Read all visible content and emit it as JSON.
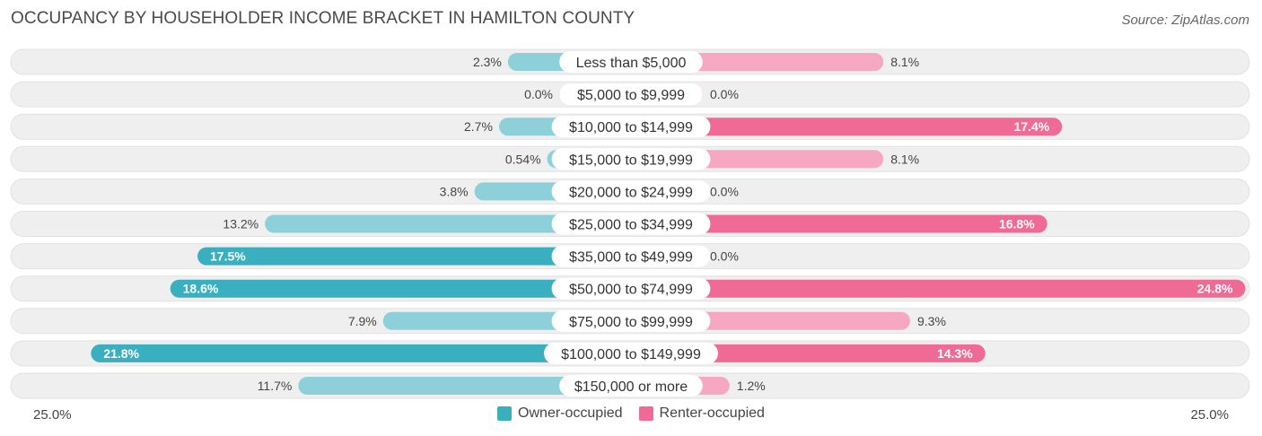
{
  "title": "OCCUPANCY BY HOUSEHOLDER INCOME BRACKET IN HAMILTON COUNTY",
  "source": "Source: ZipAtlas.com",
  "colors": {
    "owner": "#3aafbf",
    "owner_light": "#8dd0da",
    "renter": "#f06a96",
    "renter_light": "#f6a8c2",
    "row_bg": "#efefef"
  },
  "chart_data": {
    "type": "bar",
    "orientation": "horizontal-diverging",
    "categories": [
      "Less than $5,000",
      "$5,000 to $9,999",
      "$10,000 to $14,999",
      "$15,000 to $19,999",
      "$20,000 to $24,999",
      "$25,000 to $34,999",
      "$35,000 to $49,999",
      "$50,000 to $74,999",
      "$75,000 to $99,999",
      "$100,000 to $149,999",
      "$150,000 or more"
    ],
    "series": [
      {
        "name": "Owner-occupied",
        "values": [
          2.3,
          0.0,
          2.7,
          0.54,
          3.8,
          13.2,
          17.5,
          18.6,
          7.9,
          21.8,
          11.7
        ],
        "labels": [
          "2.3%",
          "0.0%",
          "2.7%",
          "0.54%",
          "3.8%",
          "13.2%",
          "17.5%",
          "18.6%",
          "7.9%",
          "21.8%",
          "11.7%"
        ]
      },
      {
        "name": "Renter-occupied",
        "values": [
          8.1,
          0.0,
          17.4,
          8.1,
          0.0,
          16.8,
          0.0,
          24.8,
          9.3,
          14.3,
          1.2
        ],
        "labels": [
          "8.1%",
          "0.0%",
          "17.4%",
          "8.1%",
          "0.0%",
          "16.8%",
          "0.0%",
          "24.8%",
          "9.3%",
          "14.3%",
          "1.2%"
        ]
      }
    ],
    "xlim": [
      -25,
      25
    ],
    "axis_labels": {
      "left": "25.0%",
      "right": "25.0%"
    },
    "legend": [
      "Owner-occupied",
      "Renter-occupied"
    ],
    "legend_position": "bottom-center"
  }
}
